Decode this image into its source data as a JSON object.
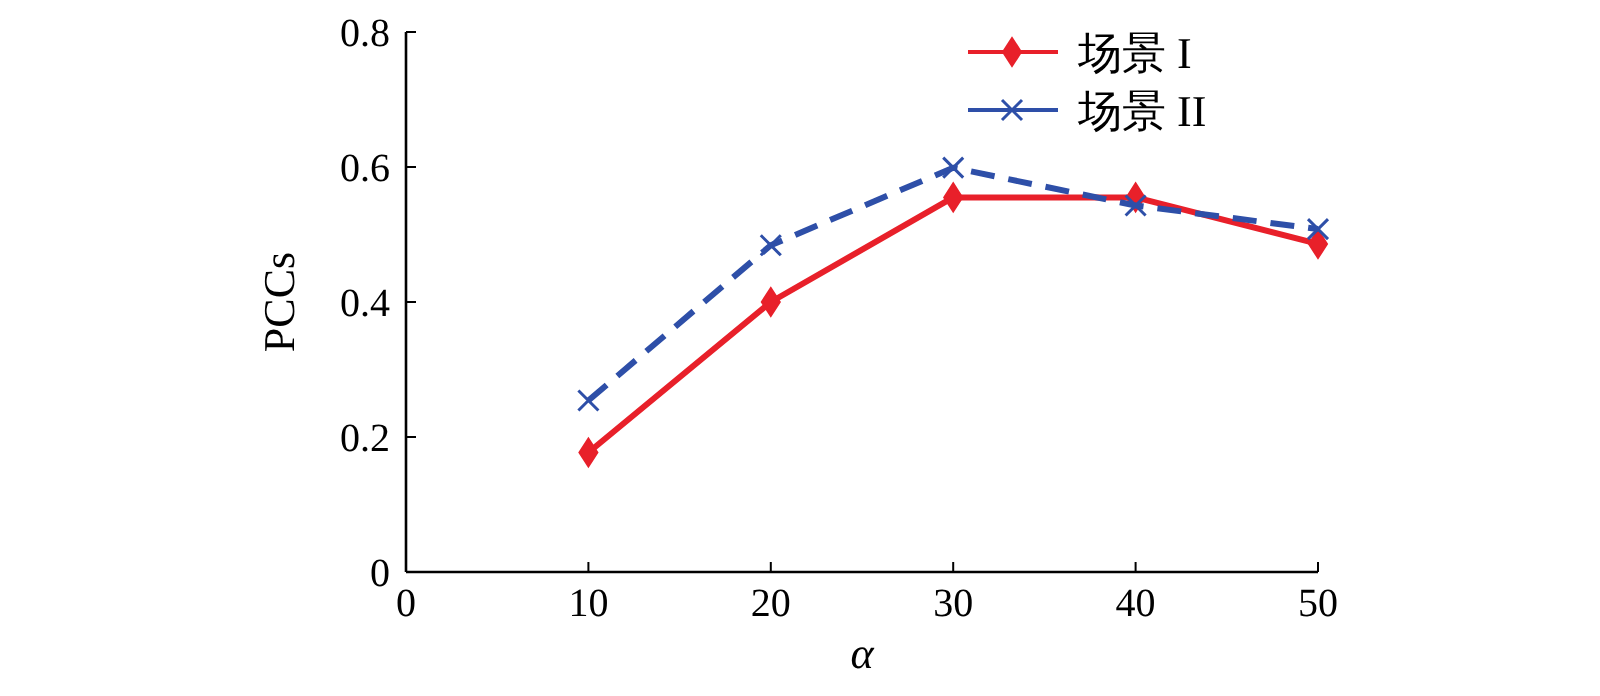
{
  "chart_data": {
    "type": "line",
    "xlabel": "α",
    "ylabel": "PCCs",
    "x": [
      10,
      20,
      30,
      40,
      50
    ],
    "series": [
      {
        "name": "场景 I",
        "color": "#e8202a",
        "marker": "diamond",
        "line_style": "solid",
        "values": [
          0.177,
          0.4,
          0.555,
          0.555,
          0.486
        ]
      },
      {
        "name": "场景 II",
        "color": "#2e4fa8",
        "marker": "cross",
        "line_style": "dashed",
        "values": [
          0.254,
          0.484,
          0.599,
          0.543,
          0.508
        ]
      }
    ],
    "xlim": [
      0,
      50
    ],
    "xticks": [
      0,
      10,
      20,
      30,
      40,
      50
    ],
    "ylim": [
      0,
      0.8
    ],
    "yticks": [
      0,
      0.2,
      0.4,
      0.6,
      0.8
    ],
    "legend": "top right"
  }
}
